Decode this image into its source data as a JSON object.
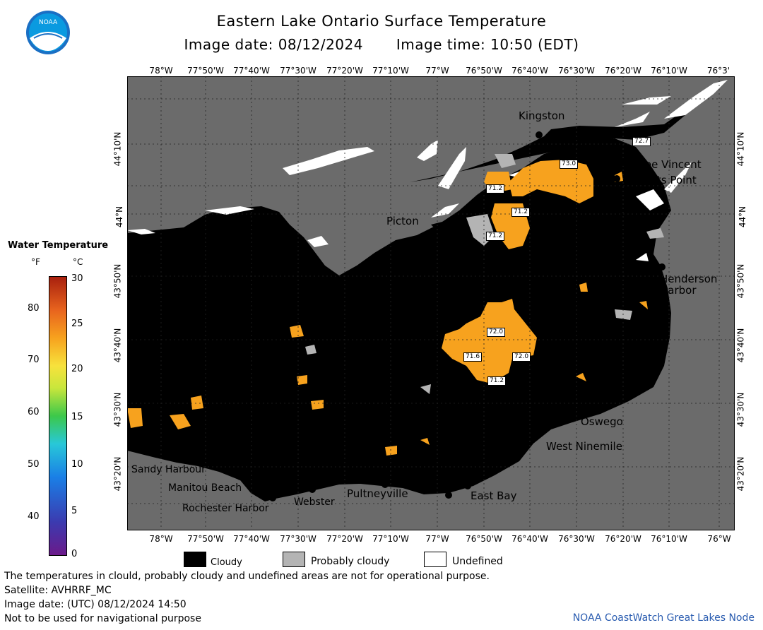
{
  "header": {
    "title": "Eastern Lake Ontario Surface Temperature",
    "image_date": "Image date: 08/12/2024",
    "image_time": "Image time: 10:50 (EDT)"
  },
  "logo": {
    "text": "NOAA"
  },
  "colorbar": {
    "title": "Water Temperature",
    "unit_f": "°F",
    "unit_c": "°C",
    "ticks_f": [
      "80",
      "70",
      "60",
      "50",
      "40"
    ],
    "ticks_c": [
      "30",
      "25",
      "20",
      "15",
      "10",
      "5",
      "0"
    ]
  },
  "map": {
    "lon_labels": [
      "78°W",
      "77°50'W",
      "77°40'W",
      "77°30'W",
      "77°20'W",
      "77°10'W",
      "77°W",
      "76°50'W",
      "76°40'W",
      "76°30'W",
      "76°20'W",
      "76°10'W",
      "76°W"
    ],
    "lon_top_last": "76°3'",
    "lat_labels": [
      "44°10'N",
      "44°N",
      "43°50'N",
      "43°40'N",
      "43°30'N",
      "43°20'N"
    ],
    "places": {
      "kingston": "Kingston",
      "cape_vincent": "Cape Vincent",
      "tibbetts_point": "Tibbetts Point",
      "picton": "Picton",
      "henderson_harbor": "Henderson Harbor",
      "oswego": "Oswego",
      "west_ninemile": "West Ninemile",
      "sandy_harbour": "Sandy Harbour",
      "manitou_beach": "Manitou Beach",
      "rochester_harbor": "Rochester Harbor",
      "webster": "Webster",
      "pultneyville": "Pultneyville",
      "east_bay": "East Bay"
    },
    "temps": {
      "t1": "72.7",
      "t2": "73.0",
      "t3": "71.2",
      "t4": "71.2",
      "t5": "71.2",
      "t6": "72.0",
      "t7": "71.6",
      "t8": "72.0",
      "t9": "71.2"
    }
  },
  "legend": {
    "cloudy": "Cloudy",
    "probably_cloudy": "Probably cloudy",
    "undefined": "Undefined"
  },
  "footer": {
    "note": "The temperatures in clould, probably cloudy and undefined areas are not for operational purpose.",
    "satellite": "Satellite: AVHRRF_MC",
    "utc": "Image date: (UTC) 08/12/2024  14:50",
    "nav": "Not to be used for navigational purpose",
    "credit": "NOAA CoastWatch Great Lakes Node"
  },
  "colors": {
    "land": "#6b6b6b",
    "cloud": "#000000",
    "probably_cloudy": "#b4b4b4",
    "warm": "#f7a21e"
  }
}
